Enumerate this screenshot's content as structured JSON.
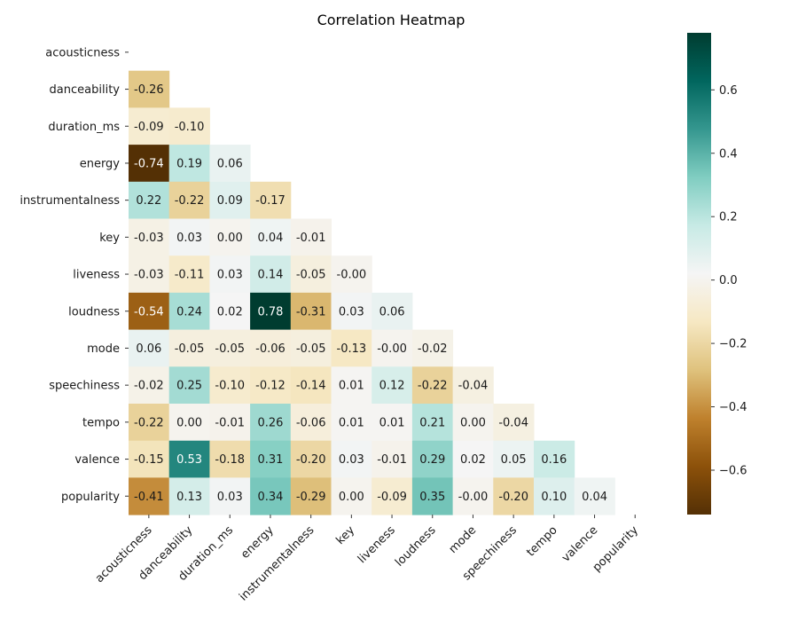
{
  "chart_data": {
    "type": "heatmap",
    "title": "Correlation Heatmap",
    "variables": [
      "acousticness",
      "danceability",
      "duration_ms",
      "energy",
      "instrumentalness",
      "key",
      "liveness",
      "loudness",
      "mode",
      "speechiness",
      "tempo",
      "valence",
      "popularity"
    ],
    "mask": "upper-triangle-and-diagonal",
    "lower_triangle": [
      [],
      [
        -0.26
      ],
      [
        -0.09,
        -0.1
      ],
      [
        -0.74,
        0.19,
        0.06
      ],
      [
        0.22,
        -0.22,
        0.09,
        -0.17
      ],
      [
        -0.03,
        0.03,
        0.0,
        0.04,
        -0.01
      ],
      [
        -0.03,
        -0.11,
        0.03,
        0.14,
        -0.05,
        -0.0
      ],
      [
        -0.54,
        0.24,
        0.02,
        0.78,
        -0.31,
        0.03,
        0.06
      ],
      [
        0.06,
        -0.05,
        -0.05,
        -0.06,
        -0.05,
        -0.13,
        -0.0,
        -0.02
      ],
      [
        -0.02,
        0.25,
        -0.1,
        -0.12,
        -0.14,
        0.01,
        0.12,
        -0.22,
        -0.04
      ],
      [
        -0.22,
        0.0,
        -0.01,
        0.26,
        -0.06,
        0.01,
        0.01,
        0.21,
        0.0,
        -0.04
      ],
      [
        -0.15,
        0.53,
        -0.18,
        0.31,
        -0.2,
        0.03,
        -0.01,
        0.29,
        0.02,
        0.05,
        0.16
      ],
      [
        -0.41,
        0.13,
        0.03,
        0.34,
        -0.29,
        0.0,
        -0.09,
        0.35,
        -0.0,
        -0.2,
        0.1,
        0.04
      ]
    ],
    "value_format": "2 decimals",
    "colormap": "BrBG",
    "colorbar": {
      "vmin": -0.74,
      "vmax": 0.78,
      "ticks": [
        "−0.6",
        "−0.4",
        "−0.2",
        "0.0",
        "0.2",
        "0.4",
        "0.6"
      ],
      "tick_values": [
        -0.6,
        -0.4,
        -0.2,
        0.0,
        0.2,
        0.4,
        0.6
      ]
    },
    "grid": false,
    "colorbar_position": "right"
  }
}
